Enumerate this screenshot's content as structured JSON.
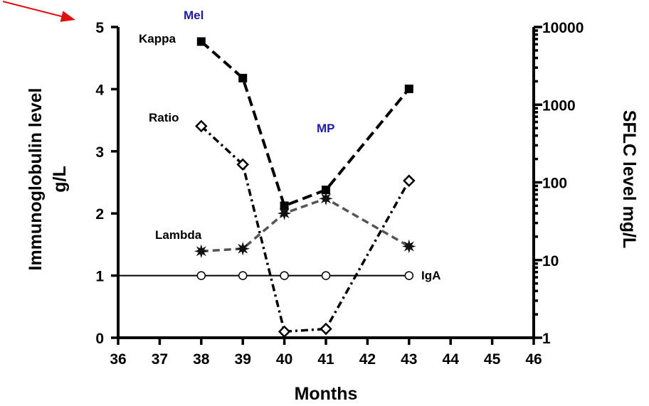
{
  "colors": {
    "axis": "#000000",
    "annotation_blue": "#1a1aa6",
    "arrow": "#e01010",
    "lambda_line": "#555555"
  },
  "chart_data": {
    "type": "line",
    "xlabel": "Months",
    "ylabel_left": [
      "Immunoglobulin level",
      "g/L"
    ],
    "ylabel_right": "SFLC level mg/L",
    "xlim": [
      36,
      46
    ],
    "ylim_left": [
      0,
      5
    ],
    "ylim_right": [
      1,
      10000
    ],
    "right_scale": "log",
    "x_ticks": [
      "36",
      "37",
      "38",
      "39",
      "40",
      "41",
      "42",
      "43",
      "44",
      "45",
      "46"
    ],
    "y_left_ticks": [
      "0",
      "1",
      "2",
      "3",
      "4",
      "5"
    ],
    "y_right_ticks": [
      "1",
      "10",
      "100",
      "1000",
      "10000"
    ],
    "grid": false,
    "legend": "none",
    "series": [
      {
        "name": "Kappa",
        "axis": "right",
        "marker": "square",
        "line": "dashed",
        "x": [
          38,
          39,
          40,
          41,
          43
        ],
        "y": [
          6500,
          2200,
          50,
          80,
          1600
        ]
      },
      {
        "name": "Ratio",
        "axis": "right",
        "marker": "diamond-open",
        "line": "dash-dot",
        "x": [
          38,
          39,
          40,
          41,
          43
        ],
        "y": [
          530,
          170,
          1.2,
          1.3,
          105
        ]
      },
      {
        "name": "Lambda",
        "axis": "right",
        "marker": "star",
        "line": "dashed-gray",
        "x": [
          38,
          39,
          40,
          41,
          43
        ],
        "y": [
          13,
          14,
          40,
          62,
          15
        ]
      },
      {
        "name": "IgA",
        "axis": "left",
        "marker": "circle-open",
        "line": "solid",
        "x": [
          38,
          39,
          40,
          41,
          43
        ],
        "y": [
          1,
          1,
          1,
          1,
          1
        ]
      }
    ],
    "annotations": [
      {
        "text": "Mel",
        "style": "blue"
      },
      {
        "text": "MP",
        "style": "blue"
      }
    ]
  }
}
